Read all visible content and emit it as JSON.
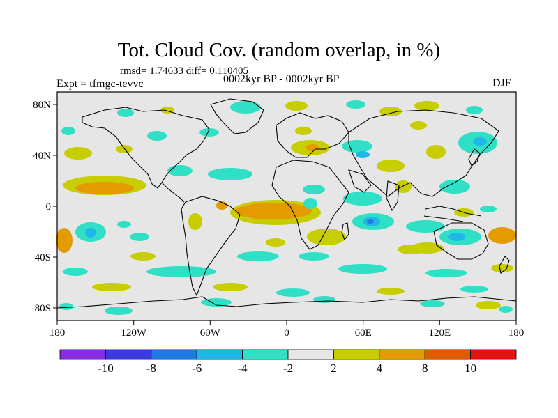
{
  "title": "Tot. Cloud Cov. (random overlap, in %)",
  "stats": "rmsd= 1.74633 diff= 0.110405",
  "experiment": "Expt = tfmgc-tevvc",
  "period": "0002kyr BP - 0002kyr BP",
  "season": "DJF",
  "axes": {
    "x_ticks": [
      "180",
      "120W",
      "60W",
      "0",
      "60E",
      "120E",
      "180"
    ],
    "y_ticks": [
      "80N",
      "40N",
      "0",
      "40S",
      "80S"
    ]
  },
  "colorbar": {
    "colors": [
      "#8a2be2",
      "#3a3adf",
      "#1e7be0",
      "#21b6e8",
      "#2fe0c6",
      "#e6e6e6",
      "#c8cd00",
      "#e39b00",
      "#e05a00",
      "#e81010"
    ],
    "labels": [
      "-10",
      "-8",
      "-6",
      "-4",
      "-2",
      "2",
      "4",
      "8",
      "10"
    ]
  },
  "colors": {
    "background_field": "#e6e6e6",
    "neg_small": "#2fe0c6",
    "neg_mid": "#21b6e8",
    "neg_large": "#1e7be0",
    "pos_small": "#c8cd00",
    "pos_mid": "#e39b00"
  }
}
